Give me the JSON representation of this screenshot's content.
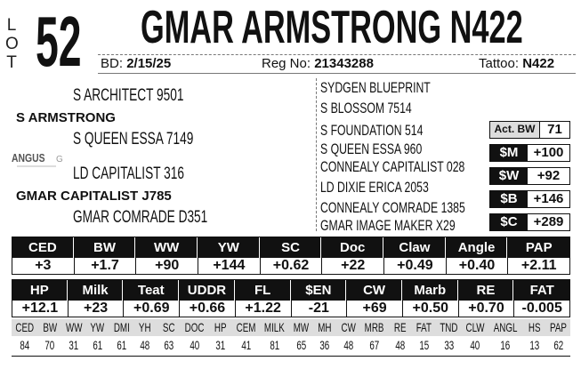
{
  "lot": {
    "label": "LOT",
    "letters": [
      "L",
      "O",
      "T"
    ],
    "number": "52"
  },
  "title": "GMAR ARMSTRONG N422",
  "info": {
    "bd_label": "BD:",
    "bd": "2/15/25",
    "reg_label": "Reg No:",
    "reg": "21343288",
    "tattoo_label": "Tattoo:",
    "tattoo": "N422"
  },
  "pedigree": {
    "sire": "S ARMSTRONG",
    "sire_sire": "S ARCHITECT 9501",
    "sire_dam": "S QUEEN ESSA 7149",
    "dam": "GMAR CAPITALIST J785",
    "dam_sire": "LD CAPITALIST 316",
    "dam_dam": "GMAR COMRADE D351",
    "right": [
      "SYDGEN BLUEPRINT",
      "S BLOSSOM 7514",
      "S FOUNDATION 514",
      "S QUEEN ESSA 960",
      "CONNEALY CAPITALIST 028",
      "LD DIXIE ERICA 2053",
      "CONNEALY COMRADE 1385",
      "GMAR IMAGE MAKER X29"
    ]
  },
  "logo": {
    "text": "ANGUS GS"
  },
  "act_bw": {
    "label": "Act. BW",
    "value": "71"
  },
  "indexes": [
    {
      "label": "$M",
      "value": "+100"
    },
    {
      "label": "$W",
      "value": "+92"
    },
    {
      "label": "$B",
      "value": "+146"
    },
    {
      "label": "$C",
      "value": "+289"
    }
  ],
  "epd1": [
    {
      "h": "CED",
      "v": "+3"
    },
    {
      "h": "BW",
      "v": "+1.7"
    },
    {
      "h": "WW",
      "v": "+90"
    },
    {
      "h": "YW",
      "v": "+144"
    },
    {
      "h": "SC",
      "v": "+0.62"
    },
    {
      "h": "Doc",
      "v": "+22"
    },
    {
      "h": "Claw",
      "v": "+0.49"
    },
    {
      "h": "Angle",
      "v": "+0.40"
    },
    {
      "h": "PAP",
      "v": "+2.11"
    }
  ],
  "epd2": [
    {
      "h": "HP",
      "v": "+12.1"
    },
    {
      "h": "Milk",
      "v": "+23"
    },
    {
      "h": "Teat",
      "v": "+0.69"
    },
    {
      "h": "UDDR",
      "v": "+0.66"
    },
    {
      "h": "FL",
      "v": "+1.22"
    },
    {
      "h": "$EN",
      "v": "-21"
    },
    {
      "h": "CW",
      "v": "+69"
    },
    {
      "h": "Marb",
      "v": "+0.50"
    },
    {
      "h": "RE",
      "v": "+0.70"
    },
    {
      "h": "FAT",
      "v": "-0.005"
    }
  ],
  "percentiles": [
    {
      "h": "CED",
      "v": "84"
    },
    {
      "h": "BW",
      "v": "70"
    },
    {
      "h": "WW",
      "v": "31"
    },
    {
      "h": "YW",
      "v": "61"
    },
    {
      "h": "DMI",
      "v": "61"
    },
    {
      "h": "YH",
      "v": "48"
    },
    {
      "h": "SC",
      "v": "63"
    },
    {
      "h": "DOC",
      "v": "40"
    },
    {
      "h": "HP",
      "v": "31"
    },
    {
      "h": "CEM",
      "v": "41"
    },
    {
      "h": "MILK",
      "v": "81"
    },
    {
      "h": "MW",
      "v": "65"
    },
    {
      "h": "MH",
      "v": "36"
    },
    {
      "h": "CW",
      "v": "48"
    },
    {
      "h": "MRB",
      "v": "67"
    },
    {
      "h": "RE",
      "v": "48"
    },
    {
      "h": "FAT",
      "v": "15"
    },
    {
      "h": "TND",
      "v": "33"
    },
    {
      "h": "CLW",
      "v": "40"
    },
    {
      "h": "ANGL",
      "v": "16"
    },
    {
      "h": "HS",
      "v": "13"
    },
    {
      "h": "PAP",
      "v": "62"
    }
  ]
}
